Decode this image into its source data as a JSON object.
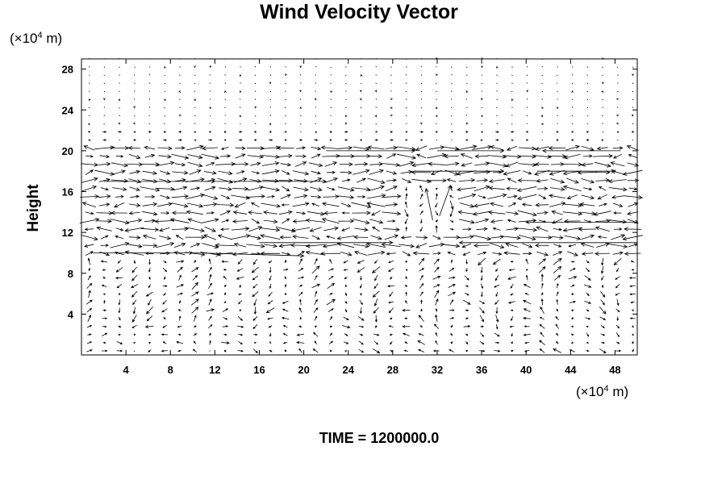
{
  "chart_data": {
    "type": "vector-field",
    "title": "Wind Velocity Vector",
    "ylabel": "Height",
    "x_unit": {
      "prefix": "(×10",
      "exp": "4",
      "suffix": " m)"
    },
    "y_unit": {
      "prefix": "(×10",
      "exp": "4",
      "suffix": " m)"
    },
    "xlim": [
      0,
      50
    ],
    "ylim": [
      0,
      29
    ],
    "x_ticks": [
      "4",
      "8",
      "12",
      "16",
      "20",
      "24",
      "28",
      "32",
      "36",
      "40",
      "44",
      "48"
    ],
    "y_ticks": [
      "4",
      "8",
      "12",
      "16",
      "20",
      "24",
      "28"
    ],
    "grid": false,
    "annotation": "TIME = 1200000.0"
  }
}
